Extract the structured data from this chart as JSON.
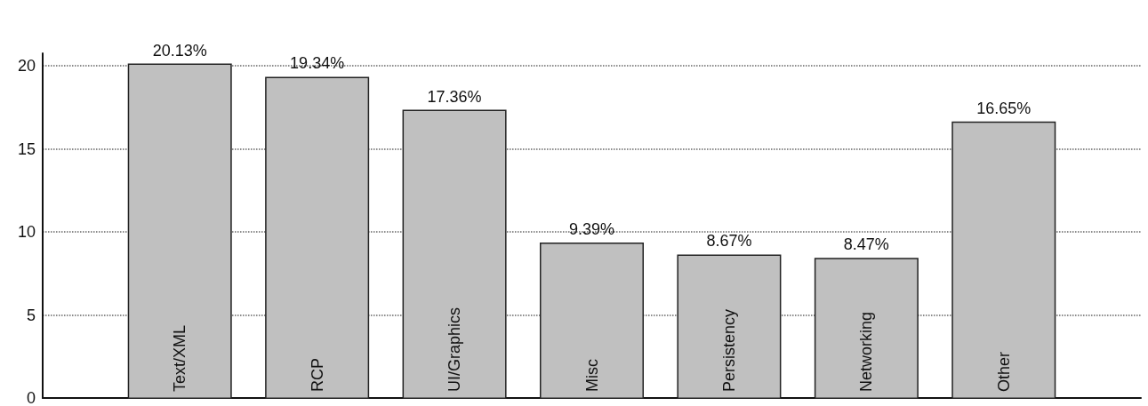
{
  "chart_data": {
    "type": "bar",
    "categories": [
      "Text/XML",
      "RCP",
      "UI/Graphics",
      "Misc",
      "Persistency",
      "Networking",
      "Other"
    ],
    "values": [
      20.13,
      19.34,
      17.36,
      9.39,
      8.67,
      8.47,
      16.65
    ],
    "value_labels": [
      "20.13%",
      "19.34%",
      "17.36%",
      "9.39%",
      "8.67%",
      "8.47%",
      "16.65%"
    ],
    "color": "#c0c0c0",
    "ylim": [
      0,
      20.75
    ],
    "yticks": [
      0,
      5,
      10,
      15,
      20
    ],
    "grid": "y"
  }
}
